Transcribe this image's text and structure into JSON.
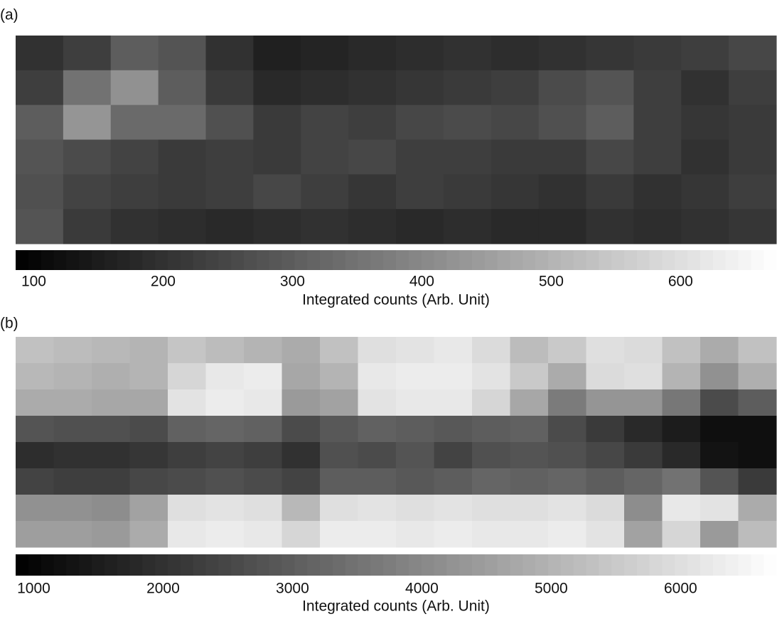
{
  "chart_data": [
    {
      "type": "heatmap",
      "panel_label": "(a)",
      "colormap": "gray",
      "clim": [
        86,
        674
      ],
      "colorbar_ticks": [
        100,
        200,
        300,
        400,
        500,
        600
      ],
      "colorbar_label": "Integrated counts (Arb. Unit)",
      "values": [
        [
          200,
          230,
          300,
          280,
          200,
          160,
          170,
          180,
          190,
          200,
          190,
          200,
          210,
          220,
          230,
          250
        ],
        [
          230,
          350,
          420,
          300,
          220,
          180,
          190,
          200,
          210,
          220,
          230,
          260,
          280,
          230,
          200,
          230
        ],
        [
          300,
          430,
          330,
          330,
          270,
          220,
          240,
          230,
          250,
          260,
          250,
          270,
          300,
          230,
          210,
          220
        ],
        [
          280,
          260,
          240,
          220,
          230,
          220,
          240,
          250,
          230,
          230,
          220,
          220,
          250,
          230,
          200,
          220
        ],
        [
          270,
          240,
          230,
          220,
          230,
          250,
          230,
          210,
          230,
          220,
          210,
          200,
          220,
          200,
          210,
          230
        ],
        [
          280,
          220,
          200,
          190,
          180,
          190,
          200,
          190,
          180,
          190,
          180,
          180,
          200,
          190,
          200,
          210
        ]
      ]
    },
    {
      "type": "heatmap",
      "panel_label": "(b)",
      "colormap": "gray",
      "clim": [
        860,
        6740
      ],
      "colorbar_ticks": [
        1000,
        2000,
        3000,
        4000,
        5000,
        6000
      ],
      "colorbar_label": "Integrated counts (Arb. Unit)",
      "values": [
        [
          5300,
          5200,
          5100,
          5000,
          5400,
          5200,
          5000,
          4800,
          5300,
          6000,
          6100,
          6200,
          5900,
          5200,
          5500,
          6000,
          5900,
          5300,
          4800,
          5300
        ],
        [
          5100,
          5000,
          4900,
          5000,
          5800,
          6200,
          6300,
          4700,
          5000,
          6200,
          6300,
          6300,
          6100,
          5500,
          4800,
          5900,
          6000,
          5000,
          4200,
          4900
        ],
        [
          4800,
          4800,
          4700,
          4700,
          6100,
          6300,
          6200,
          4400,
          4600,
          6100,
          6200,
          6200,
          5800,
          4700,
          3700,
          4300,
          4300,
          3600,
          2600,
          3000
        ],
        [
          2800,
          2700,
          2700,
          2600,
          3100,
          3200,
          3100,
          2600,
          2900,
          3100,
          3000,
          2900,
          3000,
          3100,
          2600,
          2200,
          1800,
          1500,
          1200,
          1200
        ],
        [
          1900,
          2000,
          2000,
          2100,
          2300,
          2400,
          2300,
          2000,
          2700,
          2600,
          2800,
          2400,
          2700,
          2800,
          2700,
          2500,
          2200,
          1800,
          1300,
          1200
        ],
        [
          2400,
          2300,
          2300,
          2500,
          2600,
          2700,
          2600,
          2400,
          3000,
          3000,
          2900,
          3000,
          3200,
          3100,
          3200,
          3000,
          3200,
          3500,
          2800,
          2200
        ],
        [
          4200,
          4200,
          4100,
          4600,
          6000,
          6100,
          6000,
          5100,
          6000,
          6100,
          6000,
          6100,
          6000,
          6000,
          6100,
          5900,
          4100,
          6200,
          6100,
          4800
        ],
        [
          4500,
          4500,
          4400,
          4800,
          6200,
          6300,
          6200,
          5800,
          6300,
          6300,
          6200,
          6300,
          6200,
          6200,
          6300,
          6100,
          4600,
          5800,
          4400,
          5200
        ]
      ]
    }
  ]
}
